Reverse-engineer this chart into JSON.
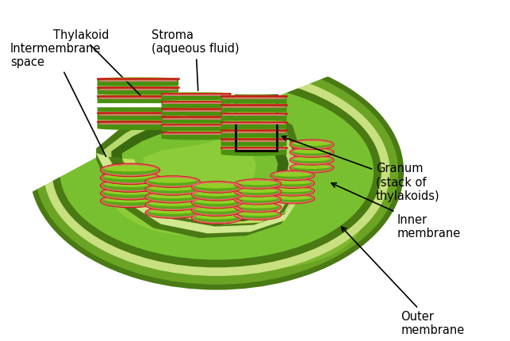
{
  "bg_color": "#ffffff",
  "labels": {
    "intermembrane_space": "Intermembrane\nspace",
    "outer_membrane": "Outer\nmembrane",
    "inner_membrane": "Inner\nmembrane",
    "granum": "Granum\n(stack of\nthylakoids)",
    "thylakoid": "Thylakoid",
    "stroma": "Stroma\n(aqueous fluid)"
  },
  "colors": {
    "outer_dark": "#4a7a14",
    "outer_mid": "#6ba424",
    "outer_light": "#8ecb38",
    "outer_highlight": "#a8d85a",
    "ims_color": "#c8e080",
    "ims_light": "#ddf0a0",
    "inner_dark": "#4a7a14",
    "stroma_dark": "#5a9820",
    "stroma_mid": "#78c030",
    "stroma_light": "#a0d840",
    "stroma_bright": "#c8ec50",
    "cut_face_outer": "#4a7a14",
    "cut_face_ims": "#b8d870",
    "cut_face_inner": "#3a6a10",
    "cut_face_stroma": "#78c030",
    "cut_floor": "#88b828",
    "thy_green_dark": "#3a7010",
    "thy_green_mid": "#5aa018",
    "thy_green_light": "#90cc30",
    "thy_green_bright": "#c0e848",
    "thy_red": "#cc1818",
    "thy_pink": "#e06060",
    "thy_pink2": "#f09090",
    "text_color": "#000000",
    "arrow_color": "#000000"
  },
  "font_size": 10.5
}
